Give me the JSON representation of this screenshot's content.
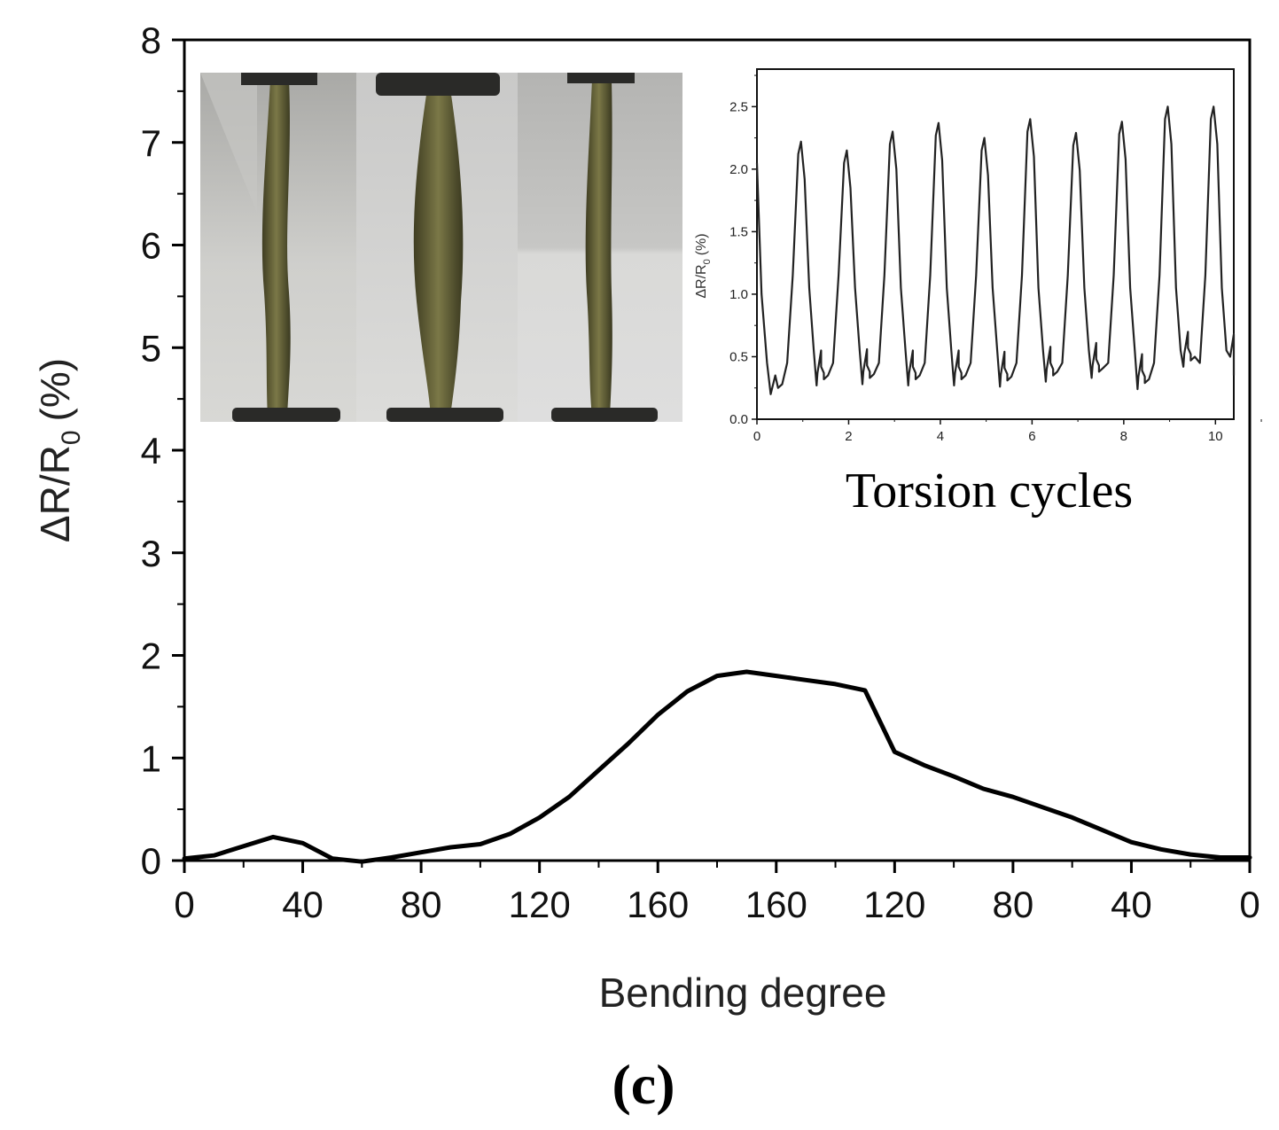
{
  "chart_data": [
    {
      "type": "line",
      "xlabel": "Bending degree",
      "ylabel": "ΔR/R0 (%)",
      "ylabel_parts": {
        "main": "ΔR/R",
        "sub": "0",
        "unit": "(%)"
      },
      "ylim": [
        0,
        8
      ],
      "x_tick_labels": [
        "0",
        "40",
        "80",
        "120",
        "160",
        "160",
        "120",
        "80",
        "40",
        "0"
      ],
      "y_tick_labels": [
        "0",
        "1",
        "2",
        "3",
        "4",
        "5",
        "6",
        "7",
        "8"
      ],
      "grid": false,
      "legend": "none",
      "color": "#000000",
      "series": [
        {
          "x": [
            0,
            10,
            20,
            30,
            40,
            50,
            60,
            70,
            80,
            90,
            100,
            110,
            120,
            130,
            140,
            150,
            160,
            170,
            180,
            190,
            200,
            210,
            220,
            230,
            240,
            250,
            260,
            270,
            280,
            290,
            300,
            310,
            320,
            330,
            340,
            350,
            360
          ],
          "values": [
            0.02,
            0.05,
            0.14,
            0.23,
            0.17,
            0.02,
            -0.01,
            0.03,
            0.08,
            0.13,
            0.16,
            0.26,
            0.42,
            0.62,
            0.88,
            1.14,
            1.42,
            1.65,
            1.8,
            1.84,
            1.8,
            1.76,
            1.72,
            1.66,
            1.06,
            0.93,
            0.82,
            0.7,
            0.62,
            0.52,
            0.42,
            0.3,
            0.18,
            0.11,
            0.06,
            0.03,
            0.03
          ]
        }
      ]
    },
    {
      "type": "line",
      "xlabel": "Torsion cycles",
      "ylabel": "ΔR/R0 (%)",
      "ylabel_parts": {
        "main": "ΔR/R",
        "sub": "0",
        "unit": "(%)"
      },
      "xlim": [
        0,
        10.4
      ],
      "ylim": [
        0,
        2.8
      ],
      "x_tick_labels": [
        "0",
        "2",
        "4",
        "6",
        "8",
        "10"
      ],
      "y_tick_labels": [
        "0.0",
        "0.5",
        "1.0",
        "1.5",
        "2.0",
        "2.5"
      ],
      "grid": false,
      "legend": "none",
      "color": "#222222",
      "peaks": [
        2.22,
        2.15,
        2.3,
        2.37,
        2.25,
        2.4,
        2.29,
        2.38,
        2.5,
        2.5
      ],
      "troughs": [
        0.2,
        0.27,
        0.28,
        0.27,
        0.27,
        0.26,
        0.3,
        0.33,
        0.24,
        0.42,
        0.4
      ]
    }
  ],
  "panel_label": "(c)",
  "inset_photo": {
    "type": "photo",
    "panels": 3,
    "description_colors": [
      "#9a9a96",
      "#6b6a3a",
      "#2b2b28"
    ]
  }
}
